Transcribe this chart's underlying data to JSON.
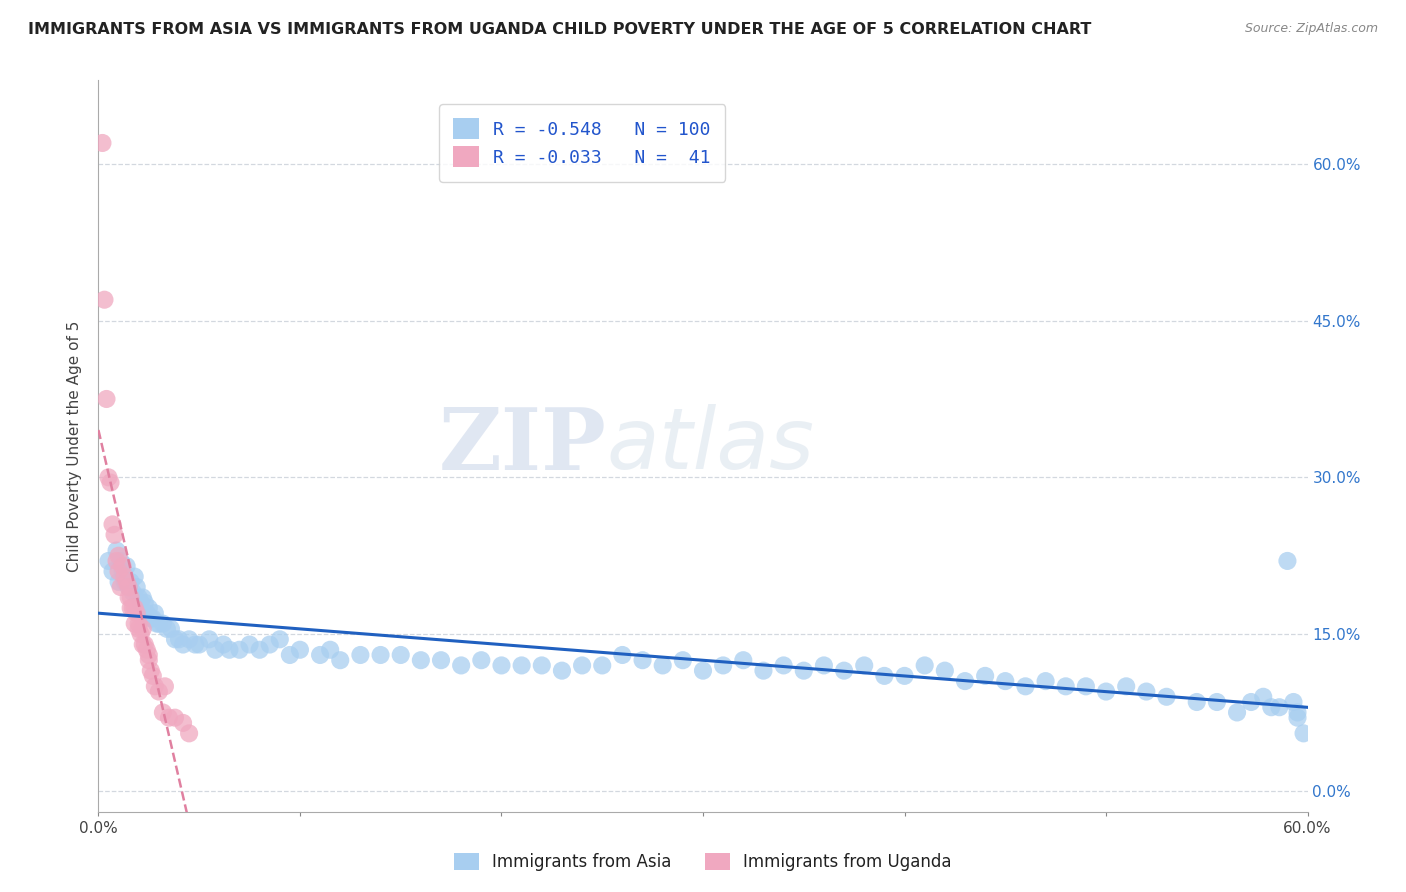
{
  "title": "IMMIGRANTS FROM ASIA VS IMMIGRANTS FROM UGANDA CHILD POVERTY UNDER THE AGE OF 5 CORRELATION CHART",
  "source": "Source: ZipAtlas.com",
  "ylabel": "Child Poverty Under the Age of 5",
  "legend_label1": "Immigrants from Asia",
  "legend_label2": "Immigrants from Uganda",
  "R1": -0.548,
  "N1": 100,
  "R2": -0.033,
  "N2": 41,
  "color_asia": "#a8cef0",
  "color_uganda": "#f0a8c0",
  "color_line_asia": "#2060c0",
  "color_line_uganda": "#d04070",
  "color_dashed_grid": "#c8cfd8",
  "color_dashed_uganda_line": "#e080a0",
  "xmin": 0.0,
  "xmax": 0.6,
  "ymin": -0.02,
  "ymax": 0.68,
  "yticks": [
    0.0,
    0.15,
    0.3,
    0.45,
    0.6
  ],
  "ytick_labels_right": [
    "0.0%",
    "15.0%",
    "30.0%",
    "45.0%",
    "60.0%"
  ],
  "xticks": [
    0.0,
    0.1,
    0.2,
    0.3,
    0.4,
    0.5,
    0.6
  ],
  "xtick_labels": [
    "0.0%",
    "",
    "",
    "",
    "",
    "",
    "60.0%"
  ],
  "watermark_zip": "ZIP",
  "watermark_atlas": "atlas",
  "asia_x": [
    0.005,
    0.007,
    0.009,
    0.01,
    0.011,
    0.012,
    0.013,
    0.014,
    0.015,
    0.016,
    0.017,
    0.018,
    0.019,
    0.02,
    0.021,
    0.022,
    0.023,
    0.024,
    0.025,
    0.026,
    0.027,
    0.028,
    0.029,
    0.03,
    0.032,
    0.034,
    0.036,
    0.038,
    0.04,
    0.042,
    0.045,
    0.048,
    0.05,
    0.055,
    0.058,
    0.062,
    0.065,
    0.07,
    0.075,
    0.08,
    0.085,
    0.09,
    0.095,
    0.1,
    0.11,
    0.115,
    0.12,
    0.13,
    0.14,
    0.15,
    0.16,
    0.17,
    0.18,
    0.19,
    0.2,
    0.21,
    0.22,
    0.23,
    0.24,
    0.25,
    0.26,
    0.27,
    0.28,
    0.29,
    0.3,
    0.31,
    0.32,
    0.33,
    0.34,
    0.35,
    0.36,
    0.37,
    0.38,
    0.39,
    0.4,
    0.41,
    0.42,
    0.43,
    0.44,
    0.45,
    0.46,
    0.47,
    0.48,
    0.49,
    0.5,
    0.51,
    0.52,
    0.53,
    0.545,
    0.555,
    0.565,
    0.572,
    0.578,
    0.582,
    0.586,
    0.59,
    0.593,
    0.595,
    0.598,
    0.595
  ],
  "asia_y": [
    0.22,
    0.21,
    0.23,
    0.2,
    0.22,
    0.21,
    0.2,
    0.215,
    0.195,
    0.2,
    0.19,
    0.205,
    0.195,
    0.185,
    0.18,
    0.185,
    0.18,
    0.17,
    0.175,
    0.165,
    0.165,
    0.17,
    0.16,
    0.16,
    0.16,
    0.155,
    0.155,
    0.145,
    0.145,
    0.14,
    0.145,
    0.14,
    0.14,
    0.145,
    0.135,
    0.14,
    0.135,
    0.135,
    0.14,
    0.135,
    0.14,
    0.145,
    0.13,
    0.135,
    0.13,
    0.135,
    0.125,
    0.13,
    0.13,
    0.13,
    0.125,
    0.125,
    0.12,
    0.125,
    0.12,
    0.12,
    0.12,
    0.115,
    0.12,
    0.12,
    0.13,
    0.125,
    0.12,
    0.125,
    0.115,
    0.12,
    0.125,
    0.115,
    0.12,
    0.115,
    0.12,
    0.115,
    0.12,
    0.11,
    0.11,
    0.12,
    0.115,
    0.105,
    0.11,
    0.105,
    0.1,
    0.105,
    0.1,
    0.1,
    0.095,
    0.1,
    0.095,
    0.09,
    0.085,
    0.085,
    0.075,
    0.085,
    0.09,
    0.08,
    0.08,
    0.22,
    0.085,
    0.075,
    0.055,
    0.07
  ],
  "uganda_x": [
    0.002,
    0.003,
    0.004,
    0.005,
    0.006,
    0.007,
    0.008,
    0.009,
    0.01,
    0.01,
    0.011,
    0.012,
    0.013,
    0.014,
    0.015,
    0.015,
    0.016,
    0.016,
    0.017,
    0.018,
    0.018,
    0.019,
    0.02,
    0.02,
    0.021,
    0.022,
    0.022,
    0.023,
    0.024,
    0.025,
    0.025,
    0.026,
    0.027,
    0.028,
    0.03,
    0.032,
    0.033,
    0.035,
    0.038,
    0.042,
    0.045
  ],
  "uganda_y": [
    0.62,
    0.47,
    0.375,
    0.3,
    0.295,
    0.255,
    0.245,
    0.22,
    0.225,
    0.21,
    0.195,
    0.215,
    0.205,
    0.2,
    0.195,
    0.185,
    0.175,
    0.185,
    0.175,
    0.175,
    0.16,
    0.17,
    0.16,
    0.155,
    0.15,
    0.155,
    0.14,
    0.14,
    0.135,
    0.13,
    0.125,
    0.115,
    0.11,
    0.1,
    0.095,
    0.075,
    0.1,
    0.07,
    0.07,
    0.065,
    0.055
  ],
  "background_color": "#ffffff"
}
